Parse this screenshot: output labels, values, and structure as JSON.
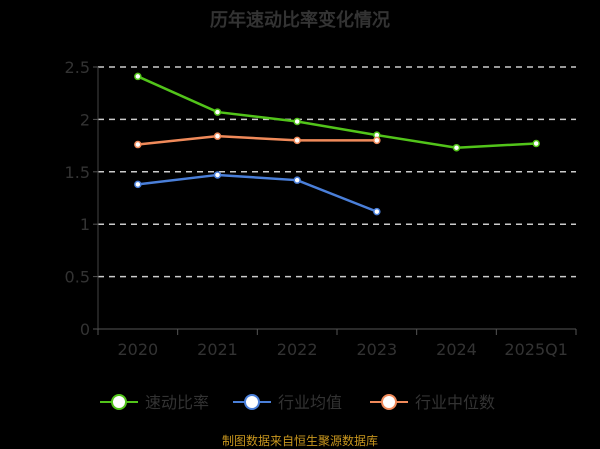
{
  "chart_data": {
    "type": "line",
    "title": "历年速动比率变化情况",
    "categories": [
      "2020",
      "2021",
      "2022",
      "2023",
      "2024",
      "2025Q1"
    ],
    "ylim": [
      0,
      2.5
    ],
    "yticks": [
      "0",
      "0.5",
      "1",
      "1.5",
      "2",
      "2.5"
    ],
    "grid": true,
    "legend": "bottom",
    "series": [
      {
        "name": "速动比率",
        "color": "#52c41a",
        "values": [
          2.41,
          2.07,
          1.98,
          1.85,
          1.73,
          1.77
        ]
      },
      {
        "name": "行业均值",
        "color": "#4a7fd9",
        "values": [
          1.38,
          1.47,
          1.42,
          1.12,
          null,
          null
        ]
      },
      {
        "name": "行业中位数",
        "color": "#f08a5a",
        "values": [
          1.76,
          1.84,
          1.8,
          1.8,
          null,
          null
        ]
      }
    ]
  },
  "source": "制图数据来自恒生聚源数据库"
}
